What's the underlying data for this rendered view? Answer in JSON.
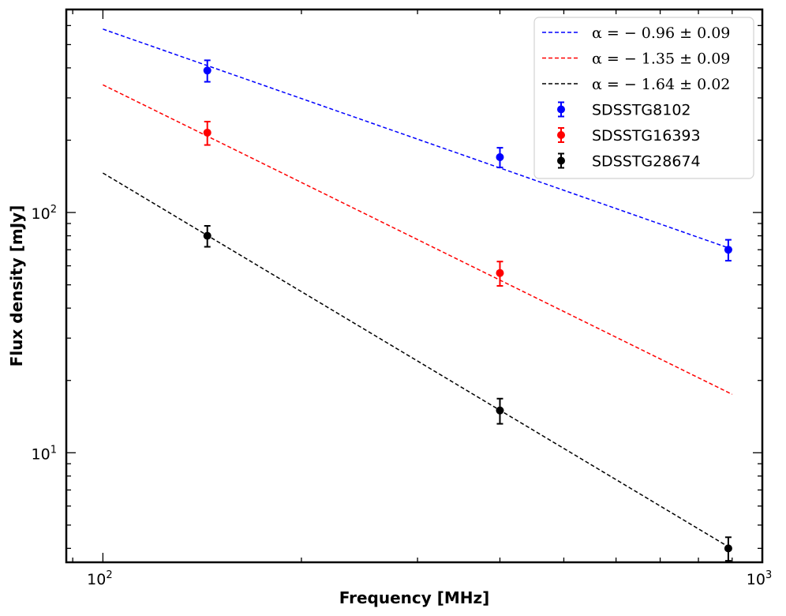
{
  "chart_data": {
    "type": "scatter",
    "xlabel": "Frequency [MHz]",
    "ylabel": "Flux density [mJy]",
    "x_scale": "log",
    "y_scale": "log",
    "xlim": [
      88,
      1000
    ],
    "ylim": [
      3.5,
      700
    ],
    "x_ticks": [
      {
        "value": 100,
        "label_base": "10",
        "label_exp": "2"
      },
      {
        "value": 1000,
        "label_base": "10",
        "label_exp": "3"
      }
    ],
    "y_ticks": [
      {
        "value": 10,
        "label_base": "10",
        "label_exp": "1"
      },
      {
        "value": 100,
        "label_base": "10",
        "label_exp": "2"
      }
    ],
    "legend_position": "top-right",
    "grid": false,
    "series": [
      {
        "name": "SDSSTG8102",
        "color": "#0000ff",
        "points": [
          {
            "x": 144,
            "y": 390,
            "err": 40
          },
          {
            "x": 400,
            "y": 170,
            "err": 16
          },
          {
            "x": 888,
            "y": 70,
            "err": 7
          }
        ]
      },
      {
        "name": "SDSSTG16393",
        "color": "#ff0000",
        "points": [
          {
            "x": 144,
            "y": 215,
            "err": 24
          },
          {
            "x": 400,
            "y": 56,
            "err": 6.5
          }
        ]
      },
      {
        "name": "SDSSTG28674",
        "color": "#000000",
        "points": [
          {
            "x": 144,
            "y": 80,
            "err": 8
          },
          {
            "x": 400,
            "y": 15,
            "err": 1.8
          },
          {
            "x": 888,
            "y": 4.0,
            "err": 0.45
          }
        ]
      }
    ],
    "fits": [
      {
        "label": "α = − 0.96 ± 0.09",
        "color": "#0000ff",
        "alpha": -0.96,
        "x_start": 100,
        "x_end": 900,
        "y_at_start": 580
      },
      {
        "label": "α = − 1.35 ± 0.09",
        "color": "#ff0000",
        "alpha": -1.35,
        "x_start": 100,
        "x_end": 900,
        "y_at_start": 340
      },
      {
        "label": "α = − 1.64 ± 0.02",
        "color": "#000000",
        "alpha": -1.64,
        "x_start": 100,
        "x_end": 888,
        "y_at_start": 146
      }
    ]
  }
}
